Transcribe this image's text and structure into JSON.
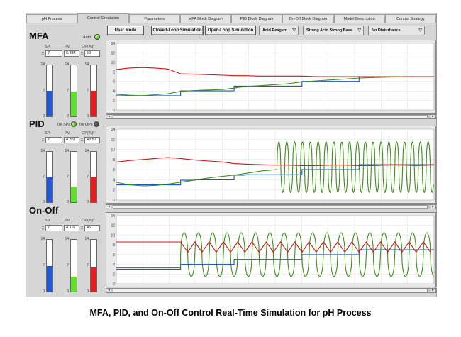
{
  "tabs": [
    "pH Process",
    "Control Simulation",
    "Parameters",
    "MFA Block Diagram",
    "PID Block Diagram",
    "On-Off Block Diagram",
    "Model Description",
    "Control Strategy"
  ],
  "active_tab": 1,
  "toolbar": {
    "user_mode": "User Mode",
    "closed_loop": "Closed-Loop Simulation",
    "open_loop": "Open-Loop Simulation",
    "reagent": "Acid Reagent",
    "process_type": "Strong Acid Strong Base",
    "disturbance": "No Disturbance"
  },
  "colors": {
    "sp": "#1a55c9",
    "pv": "#3f8f1a",
    "op": "#d01616",
    "gauge_sp": "#2459d6",
    "gauge_pv": "#5fe02c",
    "gauge_op": "#e02020"
  },
  "mfa": {
    "title": "MFA",
    "auto_label": "Auto",
    "sp_label": "SP",
    "pv_label": "PV",
    "op_label": "OP(%)*",
    "sp": "7",
    "pv": "6.884",
    "op": "50",
    "gauge_sp": 0.5,
    "gauge_pv": 0.49,
    "gauge_op": 0.5
  },
  "pid": {
    "title": "PID",
    "tie_sps": "Tie SPs",
    "tie_ops": "Tie OPs",
    "sp_label": "SP",
    "pv_label": "PV",
    "op_label": "OP(%)*",
    "sp": "7",
    "pv": "4.351",
    "op": "48.57",
    "gauge_sp": 0.5,
    "gauge_pv": 0.31,
    "gauge_op": 0.49
  },
  "onoff": {
    "title": "On-Off",
    "sp_label": "SP",
    "pv_label": "PV",
    "op_label": "OP(%)*",
    "sp": "7",
    "pv": "4.116",
    "op": "46",
    "gauge_sp": 0.5,
    "gauge_pv": 0.29,
    "gauge_op": 0.46
  },
  "gauge_ticks": [
    "14",
    "7",
    "0"
  ],
  "chart_data": [
    {
      "type": "line",
      "name": "MFA",
      "ylim": [
        0,
        14
      ],
      "yticks": [
        "0",
        "2",
        "4",
        "6",
        "8",
        "10",
        "12",
        "14"
      ],
      "x": [
        0,
        18,
        36,
        54,
        72,
        90,
        110,
        130,
        150,
        165,
        180,
        200,
        220,
        240,
        260,
        280,
        300,
        320,
        340,
        360,
        380,
        400,
        420,
        440,
        445
      ],
      "series": [
        {
          "key": "sp",
          "values": [
            3.0,
            3.0,
            3.0,
            3.0,
            3.0,
            4.0,
            4.0,
            4.0,
            4.0,
            5.0,
            5.0,
            5.0,
            5.0,
            5.0,
            6.0,
            6.0,
            6.0,
            6.0,
            7.0,
            7.0,
            7.0,
            7.0,
            7.0,
            7.0,
            7.0
          ]
        },
        {
          "key": "pv",
          "values": [
            3.3,
            3.1,
            3.0,
            3.2,
            3.4,
            3.9,
            4.1,
            4.2,
            4.3,
            4.6,
            4.9,
            5.1,
            5.3,
            5.5,
            5.9,
            6.1,
            6.3,
            6.5,
            6.7,
            6.8,
            6.9,
            6.95,
            7.0,
            7.0,
            7.0
          ]
        },
        {
          "key": "op",
          "values": [
            8.5,
            8.8,
            8.9,
            8.8,
            8.6,
            7.6,
            7.5,
            7.4,
            7.3,
            7.2,
            7.2,
            7.1,
            7.1,
            7.1,
            7.1,
            7.0,
            7.0,
            7.0,
            7.0,
            7.0,
            7.0,
            7.0,
            7.0,
            7.0,
            7.0
          ]
        }
      ]
    },
    {
      "type": "line",
      "name": "PID",
      "ylim": [
        0,
        14
      ],
      "yticks": [
        "0",
        "2",
        "4",
        "6",
        "8",
        "10",
        "12",
        "14"
      ],
      "x": [
        0,
        18,
        36,
        54,
        72,
        90,
        110,
        130,
        150,
        165,
        180,
        200,
        220,
        240,
        260,
        280,
        300,
        320,
        340,
        360,
        380,
        400,
        420,
        440,
        445
      ],
      "series": [
        {
          "key": "sp",
          "values": [
            3.0,
            3.0,
            3.0,
            3.0,
            3.0,
            3.9,
            4.0,
            4.0,
            4.0,
            4.9,
            5.0,
            5.0,
            5.0,
            5.0,
            6.0,
            6.0,
            6.0,
            6.0,
            7.0,
            7.0,
            7.0,
            7.0,
            7.0,
            7.0,
            7.0
          ]
        },
        {
          "key": "op",
          "values": [
            7.5,
            7.8,
            8.0,
            8.2,
            8.4,
            8.2,
            7.9,
            7.7,
            7.5,
            7.2,
            7.1,
            7.0,
            6.9,
            6.9,
            6.8,
            6.8,
            6.9,
            6.9,
            6.8,
            6.8,
            6.9,
            6.9,
            6.8,
            6.9,
            6.9
          ]
        }
      ],
      "pv_oscillation": {
        "start_x": 225,
        "period": 11,
        "low": 1.5,
        "high": 11.5,
        "pre_values": [
          3.5,
          3.0,
          2.8,
          2.9,
          3.2,
          3.6,
          4.0,
          4.4,
          4.7,
          5.0,
          5.4,
          5.8,
          6.0
        ]
      }
    },
    {
      "type": "line",
      "name": "On-Off",
      "ylim": [
        0,
        14
      ],
      "yticks": [
        "0",
        "2",
        "4",
        "6",
        "8",
        "10",
        "12",
        "14"
      ],
      "x": [
        0,
        18,
        36,
        54,
        72,
        90,
        110,
        130,
        150,
        165,
        180,
        200,
        220,
        240,
        260,
        280,
        300,
        320,
        340,
        360,
        380,
        400,
        420,
        440,
        445
      ],
      "series": [
        {
          "key": "sp",
          "values": [
            3.0,
            3.0,
            3.0,
            3.0,
            3.0,
            4.0,
            4.0,
            4.0,
            4.0,
            5.0,
            5.0,
            5.0,
            5.0,
            5.0,
            6.0,
            6.0,
            6.0,
            6.0,
            7.0,
            7.0,
            7.0,
            7.0,
            7.0,
            7.0,
            7.0
          ]
        }
      ],
      "pv_oscillation": {
        "start_x": 90,
        "period": 20,
        "low": 1.5,
        "high": 10.5,
        "pre_values": [
          3.3,
          3.3,
          3.3,
          3.3,
          3.3
        ]
      },
      "op_zigzag": {
        "start_x": 90,
        "period": 20,
        "low": 6.5,
        "high": 8.6,
        "pre_value": 8.6
      }
    }
  ],
  "caption": "MFA, PID, and On-Off Control Real-Time Simulation for pH Process"
}
